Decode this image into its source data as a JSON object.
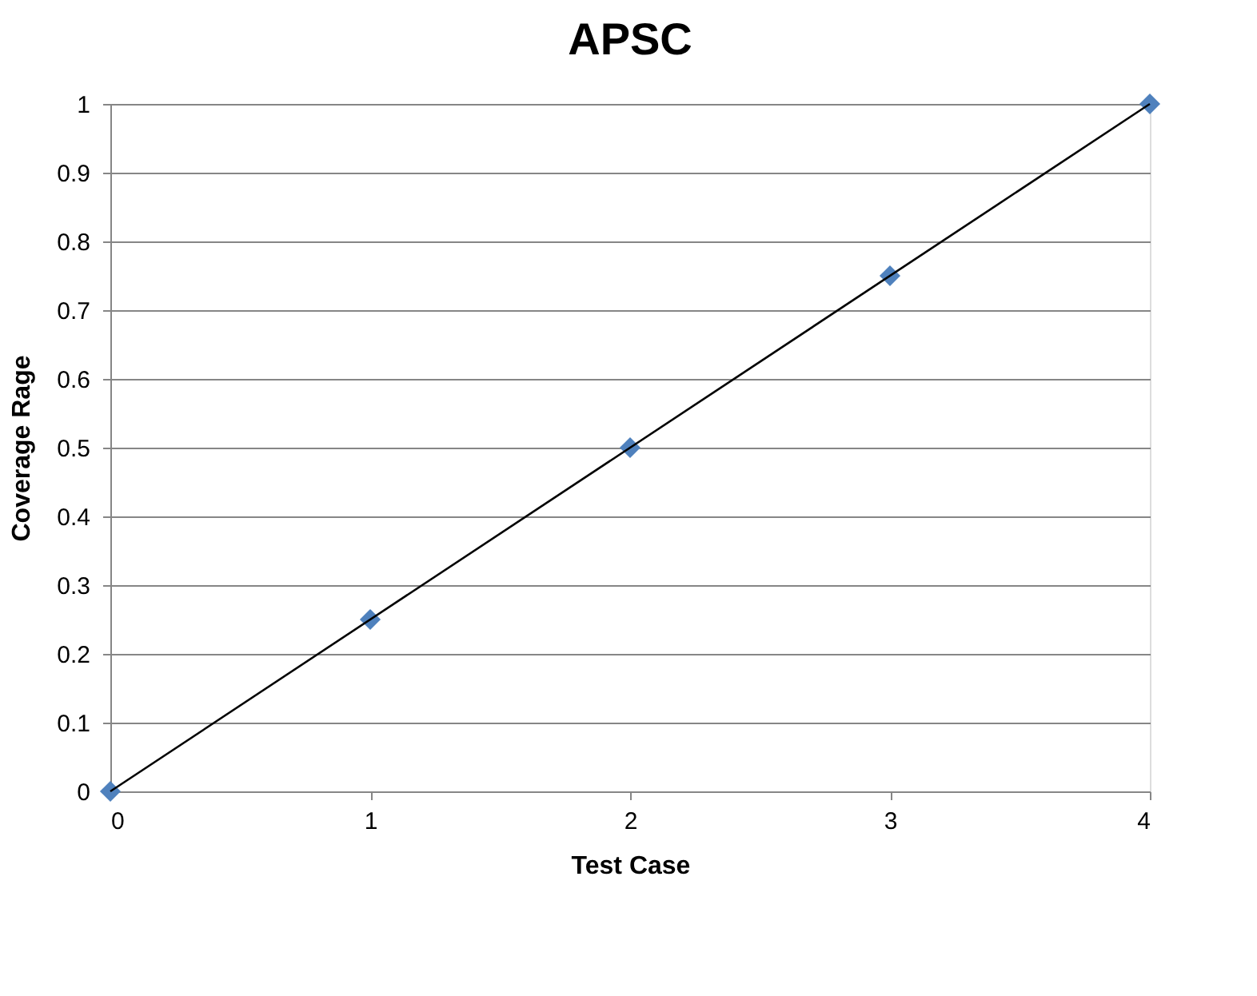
{
  "chart_data": {
    "type": "scatter",
    "title": "APSC",
    "xlabel": "Test Case",
    "ylabel": "Coverage Rage",
    "x": [
      0,
      1,
      2,
      3,
      4
    ],
    "series": [
      {
        "color": "#4f81bd",
        "values": [
          0,
          0.25,
          0.5,
          0.75,
          1
        ],
        "marker": "diamond"
      },
      {
        "type": "line",
        "x": [
          0,
          4
        ],
        "values": [
          0,
          1
        ],
        "color": "#000000",
        "marker": "none",
        "line_style": "solid"
      }
    ],
    "xlim": [
      0,
      4
    ],
    "xticks": [
      0,
      1,
      2,
      3,
      4
    ],
    "ylim": [
      0,
      1
    ],
    "yticks": [
      0,
      0.1,
      0.2,
      0.3,
      0.4,
      0.5,
      0.6,
      0.7,
      0.8,
      0.9,
      1
    ],
    "grid": "y"
  }
}
